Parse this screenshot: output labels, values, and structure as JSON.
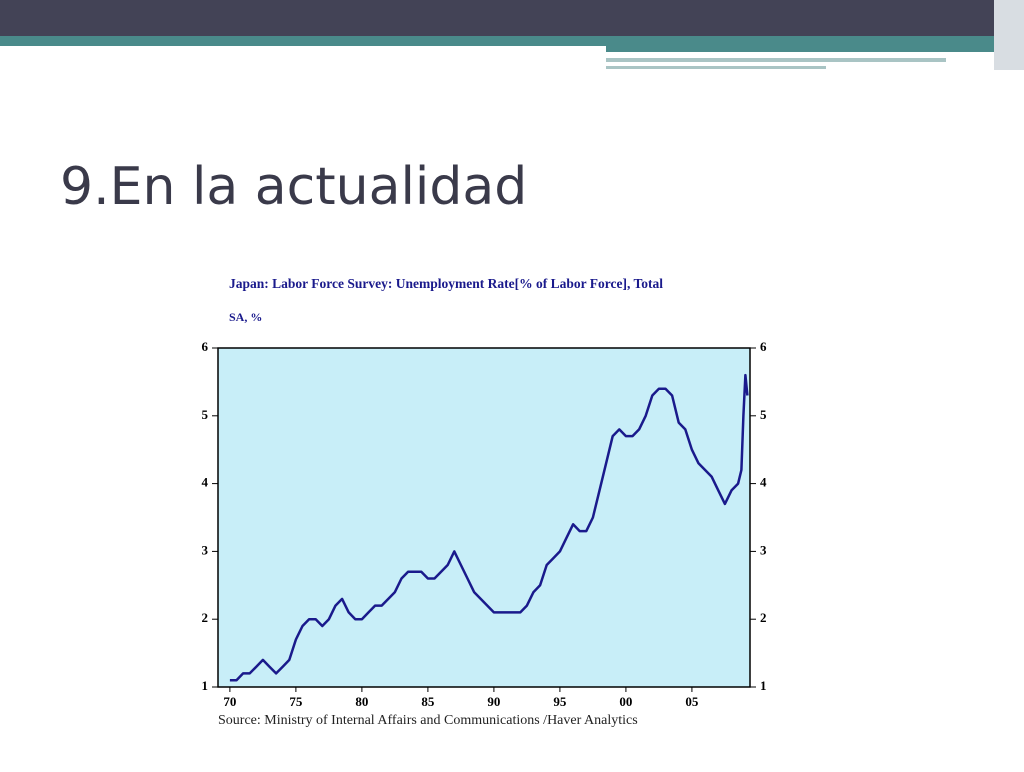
{
  "slide": {
    "title": "9.En la actualidad"
  },
  "chart_data": {
    "type": "line",
    "title": "Japan: Labor Force Survey: Unemployment Rate[% of Labor Force], Total",
    "subtitle": "SA, %",
    "source": "Source:  Ministry of Internal Affairs and Communications /Haver Analytics",
    "x": [
      1970,
      1970.5,
      1971,
      1971.5,
      1972,
      1972.5,
      1973,
      1973.5,
      1974,
      1974.5,
      1975,
      1975.5,
      1976,
      1976.5,
      1977,
      1977.5,
      1978,
      1978.5,
      1979,
      1979.5,
      1980,
      1980.5,
      1981,
      1981.5,
      1982,
      1982.5,
      1983,
      1983.5,
      1984,
      1984.5,
      1985,
      1985.5,
      1986,
      1986.5,
      1987,
      1987.5,
      1988,
      1988.5,
      1989,
      1989.5,
      1990,
      1990.5,
      1991,
      1991.5,
      1992,
      1992.5,
      1993,
      1993.5,
      1994,
      1994.5,
      1995,
      1995.5,
      1996,
      1996.5,
      1997,
      1997.5,
      1998,
      1998.5,
      1999,
      1999.5,
      2000,
      2000.5,
      2001,
      2001.5,
      2002,
      2002.5,
      2003,
      2003.5,
      2004,
      2004.5,
      2005,
      2005.5,
      2006,
      2006.5,
      2007,
      2007.5,
      2008,
      2008.5,
      2008.75,
      2008.9,
      2009.05,
      2009.2
    ],
    "series": [
      {
        "name": "Unemployment Rate",
        "color": "#1a1a8c",
        "values": [
          1.1,
          1.1,
          1.2,
          1.2,
          1.3,
          1.4,
          1.3,
          1.2,
          1.3,
          1.4,
          1.7,
          1.9,
          2.0,
          2.0,
          1.9,
          2.0,
          2.2,
          2.3,
          2.1,
          2.0,
          2.0,
          2.1,
          2.2,
          2.2,
          2.3,
          2.4,
          2.6,
          2.7,
          2.7,
          2.7,
          2.6,
          2.6,
          2.7,
          2.8,
          3.0,
          2.8,
          2.6,
          2.4,
          2.3,
          2.2,
          2.1,
          2.1,
          2.1,
          2.1,
          2.1,
          2.2,
          2.4,
          2.5,
          2.8,
          2.9,
          3.0,
          3.2,
          3.4,
          3.3,
          3.3,
          3.5,
          3.9,
          4.3,
          4.7,
          4.8,
          4.7,
          4.7,
          4.8,
          5.0,
          5.3,
          5.4,
          5.4,
          5.3,
          4.9,
          4.8,
          4.5,
          4.3,
          4.2,
          4.1,
          3.9,
          3.7,
          3.9,
          4.0,
          4.2,
          5.0,
          5.6,
          5.3
        ]
      }
    ],
    "xlim": [
      1969.1,
      2009.4
    ],
    "xticks": [
      {
        "value": 1970,
        "label": "70"
      },
      {
        "value": 1975,
        "label": "75"
      },
      {
        "value": 1980,
        "label": "80"
      },
      {
        "value": 1985,
        "label": "85"
      },
      {
        "value": 1990,
        "label": "90"
      },
      {
        "value": 1995,
        "label": "95"
      },
      {
        "value": 2000,
        "label": "00"
      },
      {
        "value": 2005,
        "label": "05"
      }
    ],
    "ylim": [
      1,
      6
    ],
    "yticks": [
      1,
      2,
      3,
      4,
      5,
      6
    ],
    "y2lim": [
      1,
      6
    ],
    "y2ticks": [
      1,
      2,
      3,
      4,
      5,
      6
    ],
    "plot_background": "#c8eef8"
  }
}
